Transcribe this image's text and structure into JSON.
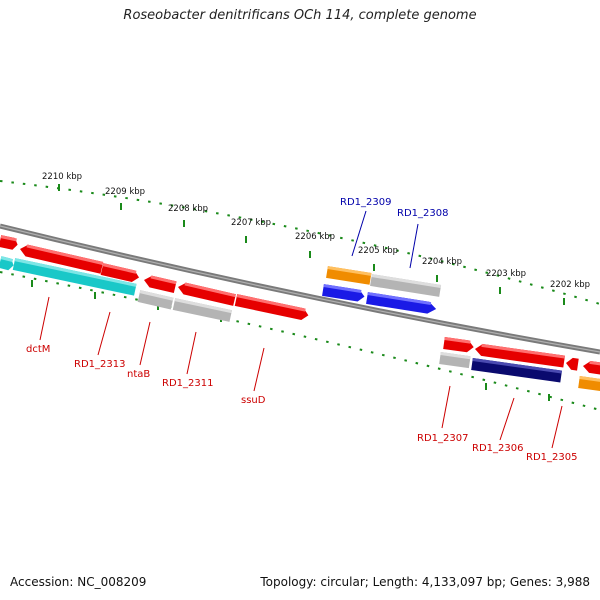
{
  "title": "Roseobacter denitrificans OCh 114, complete genome",
  "footer": {
    "accession": "Accession: NC_008209",
    "summary": "Topology: circular; Length: 4,133,097 bp; Genes: 3,988"
  },
  "colors": {
    "backbone": "#808080",
    "tick_green": "#1a8a1a",
    "gene_red": "#e60000",
    "gene_cyan": "#19c8c8",
    "gene_gray": "#b4b4b4",
    "gene_orange": "#f08c00",
    "gene_blue": "#1a1ae6",
    "gene_navy": "#0a0a6e",
    "label_red": "#cc0000",
    "label_blue": "#0000aa"
  },
  "scale_labels": [
    "2210 kbp",
    "2209 kbp",
    "2208 kbp",
    "2207 kbp",
    "2206 kbp",
    "2205 kbp",
    "2204 kbp",
    "2203 kbp",
    "2202 kbp"
  ],
  "gene_labels": {
    "dctM": "dctM",
    "rd1_2313": "RD1_2313",
    "ntaB": "ntaB",
    "rd1_2311": "RD1_2311",
    "ssuD": "ssuD",
    "rd1_2309": "RD1_2309",
    "rd1_2308": "RD1_2308",
    "rd1_2307": "RD1_2307",
    "rd1_2306": "RD1_2306",
    "rd1_2305": "RD1_2305"
  }
}
